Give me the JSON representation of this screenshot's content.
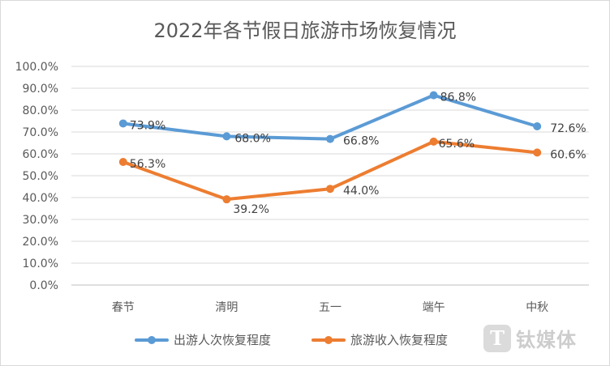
{
  "chart_data": {
    "type": "line",
    "title": "2022年各节假日旅游市场恢复情况",
    "categories": [
      "春节",
      "清明",
      "五一",
      "端午",
      "中秋"
    ],
    "series": [
      {
        "name": "出游人次恢复程度",
        "values": [
          73.9,
          68.0,
          66.8,
          86.8,
          72.6
        ],
        "labels": [
          "73.9%",
          "68.0%",
          "66.8%",
          "86.8%",
          "72.6%"
        ],
        "color": "#5b9bd5"
      },
      {
        "name": "旅游收入恢复程度",
        "values": [
          56.3,
          39.2,
          44.0,
          65.6,
          60.6
        ],
        "labels": [
          "56.3%",
          "39.2%",
          "44.0%",
          "65.6%",
          "60.6%"
        ],
        "color": "#ed7d31"
      }
    ],
    "y_ticks": [
      "0.0%",
      "10.0%",
      "20.0%",
      "30.0%",
      "40.0%",
      "50.0%",
      "60.0%",
      "70.0%",
      "80.0%",
      "90.0%",
      "100.0%"
    ],
    "ylim": [
      0,
      100
    ],
    "grid": true,
    "legend": "bottom"
  },
  "watermark": {
    "logo": "T",
    "text": "钛媒体"
  }
}
